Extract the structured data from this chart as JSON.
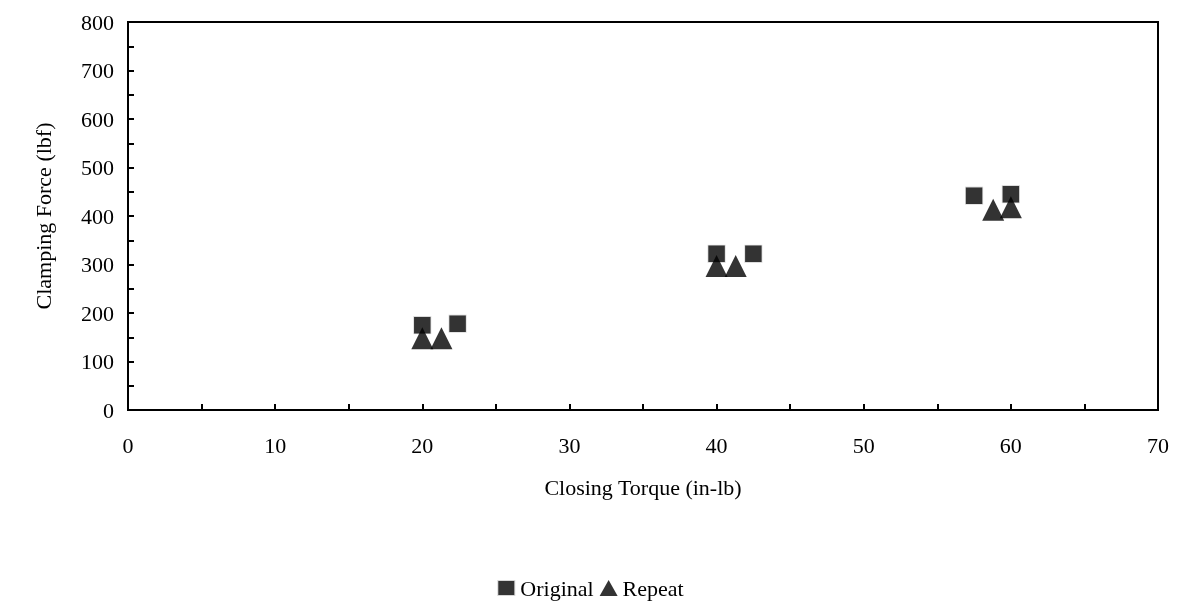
{
  "chart_data": {
    "type": "scatter",
    "xlabel": "Closing Torque (in-lb)",
    "ylabel": "Clamping Force (lbf)",
    "xlim": [
      0,
      70
    ],
    "xticks": [
      0,
      10,
      20,
      30,
      40,
      50,
      60,
      70
    ],
    "ylim": [
      0,
      800
    ],
    "yticks": [
      0,
      100,
      200,
      300,
      400,
      500,
      600,
      700,
      800
    ],
    "grid": false,
    "legend": "bottom",
    "series": [
      {
        "name": "Original",
        "color": "#000000",
        "marker": "square",
        "x": [
          20,
          22.4,
          40,
          42.5,
          57.5,
          60
        ],
        "values": [
          175,
          178,
          322,
          322,
          442,
          445
        ]
      },
      {
        "name": "Repeat",
        "color": "#000000",
        "marker": "triangle",
        "x": [
          20,
          21.3,
          40,
          41.3,
          58.8,
          60
        ],
        "values": [
          148,
          148,
          297,
          297,
          413,
          418
        ]
      }
    ]
  }
}
